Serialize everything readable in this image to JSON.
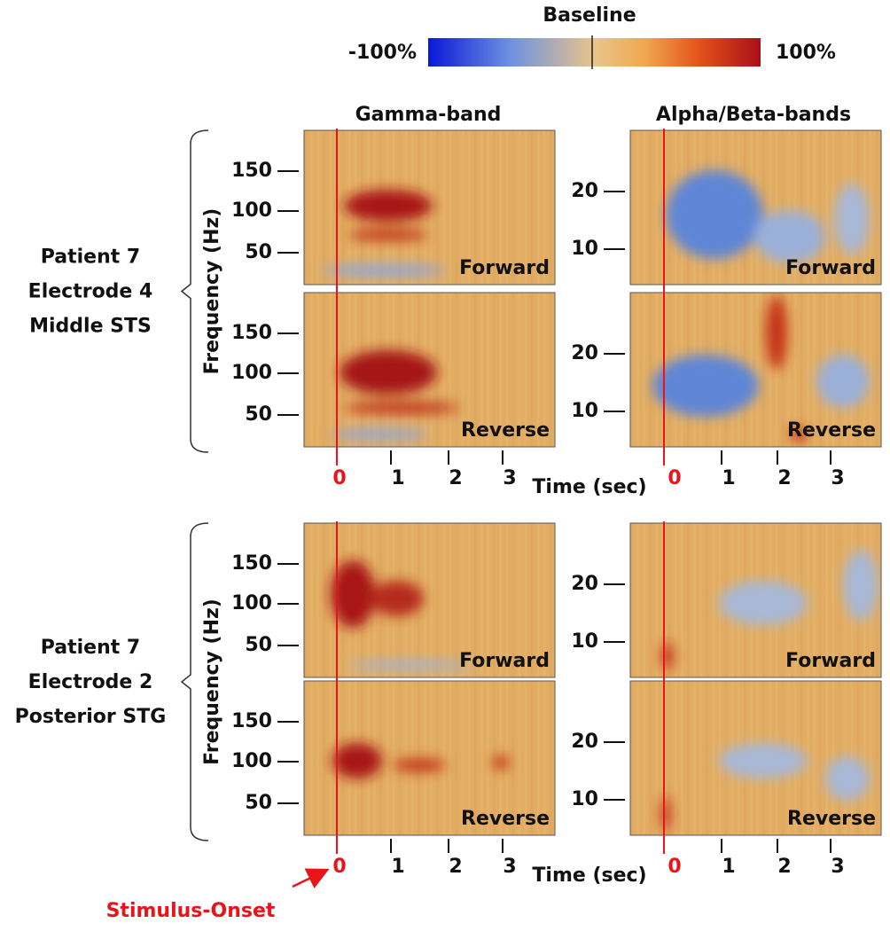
{
  "colorbar": {
    "title": "Baseline",
    "min_label": "-100%",
    "max_label": "100%"
  },
  "columns": [
    "Gamma-band",
    "Alpha/Beta-bands"
  ],
  "groups": [
    {
      "lines": [
        "Patient 7",
        "Electrode 4",
        "Middle STS"
      ],
      "conditions": [
        "Forward",
        "Reverse"
      ]
    },
    {
      "lines": [
        "Patient 7",
        "Electrode 2",
        "Posterior STG"
      ],
      "conditions": [
        "Forward",
        "Reverse"
      ]
    }
  ],
  "y_label": "Frequency (Hz)",
  "gamma_yticks": [
    "150",
    "100",
    "50"
  ],
  "alpha_yticks": [
    "20",
    "10"
  ],
  "xticks": [
    "0",
    "1",
    "2",
    "3"
  ],
  "x_label": "Time (sec)",
  "annotation": "Stimulus-Onset"
}
